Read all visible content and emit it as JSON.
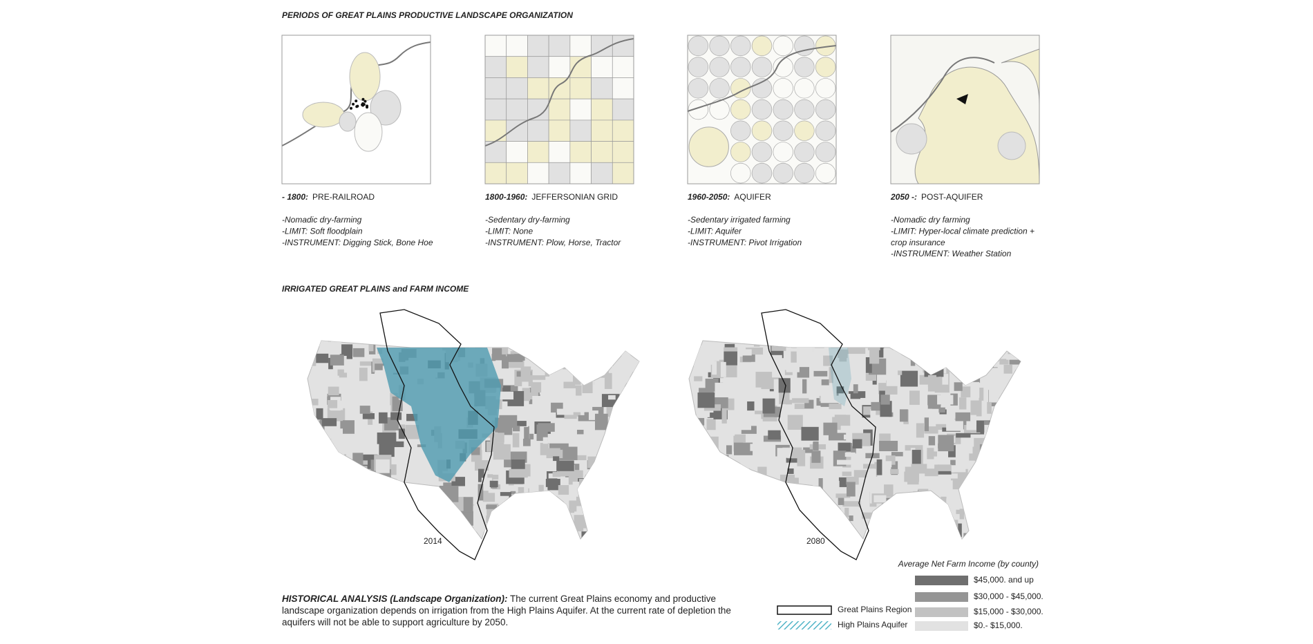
{
  "header": {
    "title": "PERIODS OF GREAT PLAINS PRODUCTIVE LANDSCAPE ORGANIZATION"
  },
  "periods": [
    {
      "date": "- 1800:",
      "label": "PRE-RAILROAD",
      "notes": [
        "-Nomadic dry-farming",
        "-LIMIT: Soft floodplain",
        "-INSTRUMENT: Digging Stick, Bone Hoe"
      ]
    },
    {
      "date": "1800-1960:",
      "label": "JEFFERSONIAN GRID",
      "notes": [
        "-Sedentary dry-farming",
        "-LIMIT: None",
        "-INSTRUMENT: Plow, Horse, Tractor"
      ]
    },
    {
      "date": "1960-2050:",
      "label": "AQUIFER",
      "notes": [
        "-Sedentary irrigated farming",
        "-LIMIT: Aquifer",
        "-INSTRUMENT: Pivot Irrigation"
      ]
    },
    {
      "date": "2050 -:",
      "label": "POST-AQUIFER",
      "notes": [
        "-Nomadic dry farming",
        "-LIMIT: Hyper-local climate prediction +",
        "crop insurance",
        "-INSTRUMENT: Weather Station"
      ]
    }
  ],
  "maps_section": {
    "title": "IRRIGATED GREAT PLAINS and FARM INCOME",
    "maps": [
      {
        "year": "2014"
      },
      {
        "year": "2080"
      }
    ]
  },
  "legend": {
    "title": "Average Net Farm Income (by county)",
    "income_levels": [
      {
        "label": "$45,000. and up",
        "color": "#6f6f6f"
      },
      {
        "label": "$30,000 - $45,000.",
        "color": "#959595"
      },
      {
        "label": "$15,000 - $30,000.",
        "color": "#c2c2c2"
      },
      {
        "label": "$0.- $15,000.",
        "color": "#e2e2e2"
      }
    ],
    "regions": [
      {
        "label": "Great Plains Region"
      },
      {
        "label": "High Plains Aquifer"
      }
    ]
  },
  "analysis": {
    "lead": "HISTORICAL ANALYSIS (Landscape Organization):",
    "text": "The current Great Plains economy and productive landscape organization depends on irrigation from the High Plains Aquifer.  At the current rate of depletion the aquifers will not be able to support agriculture by 2050."
  }
}
